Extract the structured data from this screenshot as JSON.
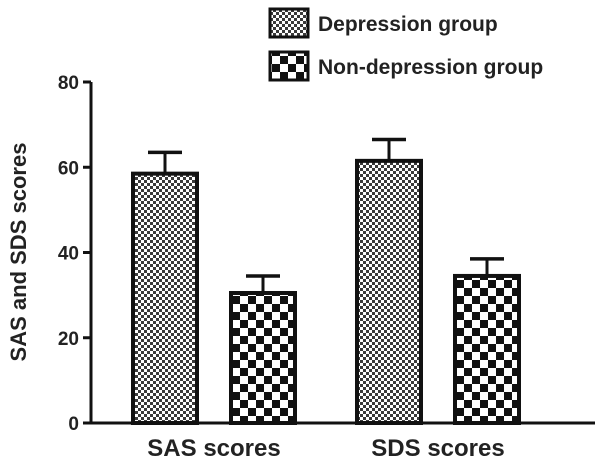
{
  "chart_data": {
    "type": "bar",
    "categories": [
      "SAS scores",
      "SDS scores"
    ],
    "series": [
      {
        "name": "Depression group",
        "values": [
          58.5,
          61.5
        ],
        "errors": [
          5,
          5
        ],
        "pattern": "fine-check"
      },
      {
        "name": "Non-depression group",
        "values": [
          30.5,
          34.5
        ],
        "errors": [
          4,
          4
        ],
        "pattern": "coarse-check"
      }
    ],
    "ylabel": "SAS and SDS scores",
    "xlabel": "",
    "ylim": [
      0,
      80
    ],
    "yticks": [
      "0",
      "20",
      "40",
      "60",
      "80"
    ],
    "grid": false,
    "legend_position": "top-right"
  },
  "colors": {
    "ink": "#111111",
    "fill_light": "#ffffff"
  }
}
